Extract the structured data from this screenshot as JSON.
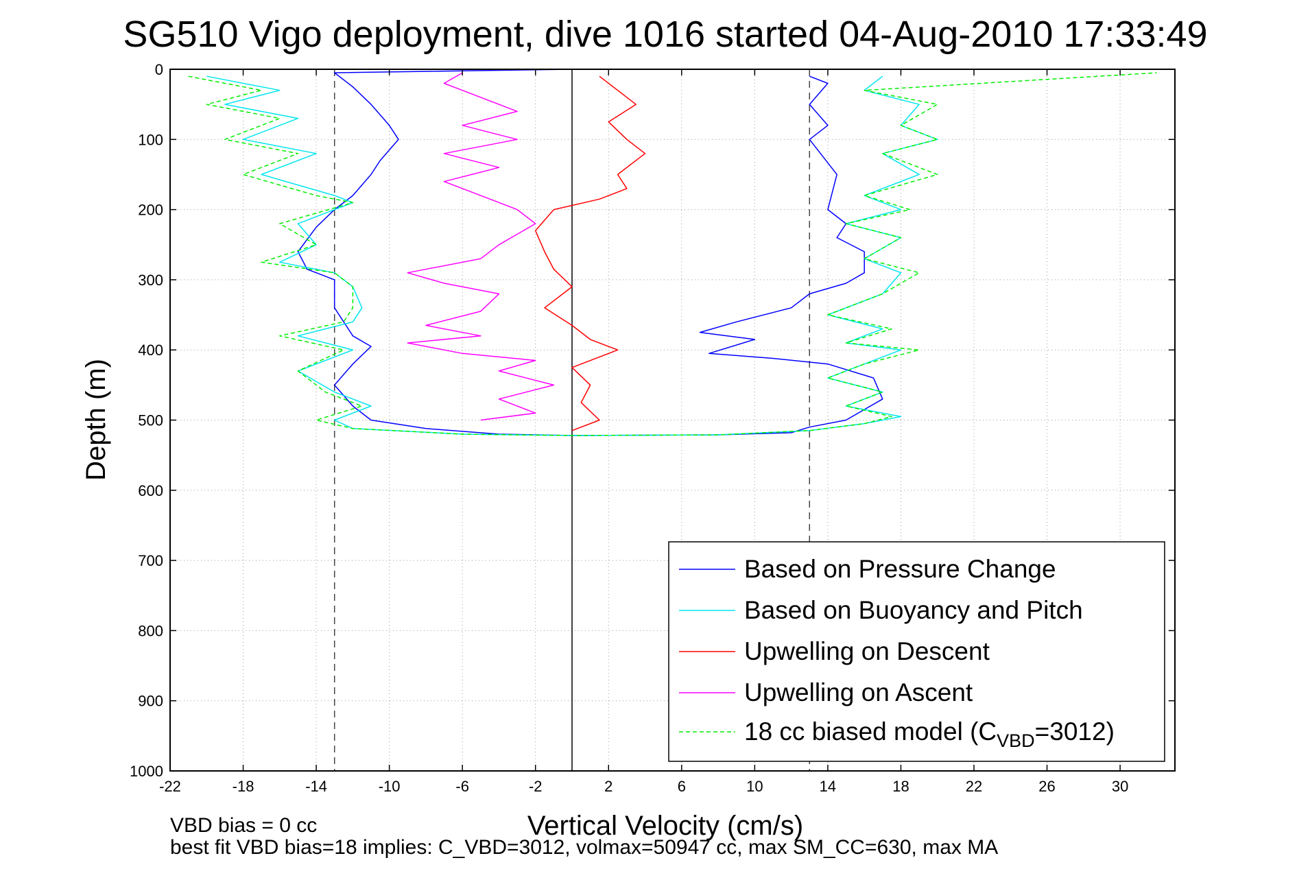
{
  "chart_data": {
    "type": "line",
    "title": "SG510 Vigo deployment, dive 1016 started 04-Aug-2010 17:33:49",
    "xlabel": "Vertical Velocity (cm/s)",
    "ylabel": "Depth (m)",
    "xlim": [
      -22,
      33
    ],
    "ylim": [
      0,
      1000
    ],
    "y_reversed": true,
    "grid": true,
    "x_ticks": [
      -22,
      -18,
      -14,
      -10,
      -6,
      -2,
      2,
      6,
      10,
      14,
      18,
      22,
      26,
      30
    ],
    "x_tick_labels": [
      "-22",
      "-18",
      "-14",
      "-10",
      "-6",
      "-2",
      "2",
      "6",
      "10",
      "14",
      "18",
      "22",
      "26",
      "30"
    ],
    "y_ticks": [
      0,
      100,
      200,
      300,
      400,
      500,
      600,
      700,
      800,
      900,
      1000
    ],
    "y_tick_labels": [
      "0",
      "100",
      "200",
      "300",
      "400",
      "500",
      "600",
      "700",
      "800",
      "900",
      "1000"
    ],
    "legend_position": "bottom-right",
    "reference_lines": [
      {
        "x": 0,
        "style": "solid"
      },
      {
        "x": -13,
        "style": "dashed"
      },
      {
        "x": 13,
        "style": "dashed"
      }
    ],
    "series": [
      {
        "name": "Based on Pressure Change",
        "color": "#0000ff",
        "style": "solid",
        "points": [
          [
            0,
            0
          ],
          [
            -13,
            5
          ],
          [
            -12,
            25
          ],
          [
            -11,
            50
          ],
          [
            -10,
            80
          ],
          [
            -9.5,
            100
          ],
          [
            -10.5,
            130
          ],
          [
            -11,
            150
          ],
          [
            -12,
            180
          ],
          [
            -13,
            200
          ],
          [
            -14,
            225
          ],
          [
            -15,
            260
          ],
          [
            -14.5,
            285
          ],
          [
            -13,
            300
          ],
          [
            -13,
            340
          ],
          [
            -12,
            380
          ],
          [
            -11,
            395
          ],
          [
            -12,
            420
          ],
          [
            -13,
            450
          ],
          [
            -12,
            480
          ],
          [
            -11,
            500
          ],
          [
            -8,
            512
          ],
          [
            -4,
            520
          ],
          [
            0,
            522
          ],
          [
            8,
            521
          ],
          [
            12,
            518
          ],
          [
            13,
            510
          ],
          [
            15,
            500
          ],
          [
            17,
            470
          ],
          [
            16.5,
            440
          ],
          [
            14,
            420
          ],
          [
            11,
            412
          ],
          [
            7.5,
            405
          ],
          [
            10,
            385
          ],
          [
            7,
            375
          ],
          [
            9,
            360
          ],
          [
            12,
            340
          ],
          [
            13,
            320
          ],
          [
            15,
            305
          ],
          [
            16,
            290
          ],
          [
            16,
            260
          ],
          [
            14.5,
            240
          ],
          [
            15,
            220
          ],
          [
            14,
            200
          ],
          [
            14.5,
            150
          ],
          [
            13,
            100
          ],
          [
            14,
            80
          ],
          [
            13,
            50
          ],
          [
            14,
            20
          ],
          [
            13,
            10
          ]
        ]
      },
      {
        "name": "Based on Buoyancy and Pitch",
        "color": "#00e5ee",
        "style": "solid",
        "points": [
          [
            -20,
            10
          ],
          [
            -16,
            30
          ],
          [
            -19,
            50
          ],
          [
            -15,
            70
          ],
          [
            -18,
            100
          ],
          [
            -14,
            120
          ],
          [
            -17,
            150
          ],
          [
            -13,
            180
          ],
          [
            -12,
            190
          ],
          [
            -15,
            220
          ],
          [
            -14,
            250
          ],
          [
            -16,
            275
          ],
          [
            -13,
            290
          ],
          [
            -12,
            310
          ],
          [
            -11.5,
            340
          ],
          [
            -12,
            360
          ],
          [
            -15,
            380
          ],
          [
            -12,
            400
          ],
          [
            -15,
            430
          ],
          [
            -13,
            460
          ],
          [
            -11,
            480
          ],
          [
            -13,
            500
          ],
          [
            -12,
            512
          ],
          [
            -6,
            520
          ],
          [
            0,
            522
          ],
          [
            8,
            521
          ],
          [
            13,
            515
          ],
          [
            16,
            505
          ],
          [
            18,
            495
          ],
          [
            15,
            480
          ],
          [
            17,
            460
          ],
          [
            14,
            440
          ],
          [
            16,
            420
          ],
          [
            18,
            400
          ],
          [
            15,
            390
          ],
          [
            17,
            370
          ],
          [
            14,
            350
          ],
          [
            17,
            320
          ],
          [
            18,
            290
          ],
          [
            16,
            270
          ],
          [
            18,
            240
          ],
          [
            15,
            220
          ],
          [
            18,
            200
          ],
          [
            16,
            180
          ],
          [
            19,
            150
          ],
          [
            17,
            120
          ],
          [
            20,
            100
          ],
          [
            18,
            80
          ],
          [
            19,
            50
          ],
          [
            16,
            30
          ],
          [
            17,
            10
          ]
        ]
      },
      {
        "name": "Upwelling on Descent",
        "color": "#ff0000",
        "style": "solid",
        "points": [
          [
            1.5,
            10
          ],
          [
            2.5,
            30
          ],
          [
            3.5,
            50
          ],
          [
            2,
            75
          ],
          [
            3,
            100
          ],
          [
            4,
            120
          ],
          [
            2.5,
            150
          ],
          [
            3,
            170
          ],
          [
            1.5,
            185
          ],
          [
            -1,
            200
          ],
          [
            -2,
            230
          ],
          [
            -1.5,
            260
          ],
          [
            -1,
            285
          ],
          [
            0,
            310
          ],
          [
            -1.5,
            340
          ],
          [
            0,
            365
          ],
          [
            1,
            385
          ],
          [
            2.5,
            400
          ],
          [
            0,
            425
          ],
          [
            1,
            450
          ],
          [
            0.5,
            475
          ],
          [
            1.5,
            500
          ],
          [
            0,
            515
          ]
        ]
      },
      {
        "name": "Upwelling on Ascent",
        "color": "#ff00ff",
        "style": "solid",
        "points": [
          [
            -5,
            500
          ],
          [
            -2,
            490
          ],
          [
            -4,
            470
          ],
          [
            -1,
            450
          ],
          [
            -4,
            430
          ],
          [
            -2,
            415
          ],
          [
            -6,
            405
          ],
          [
            -9,
            390
          ],
          [
            -5,
            380
          ],
          [
            -8,
            365
          ],
          [
            -5,
            345
          ],
          [
            -4,
            320
          ],
          [
            -7,
            305
          ],
          [
            -9,
            290
          ],
          [
            -5,
            270
          ],
          [
            -4,
            250
          ],
          [
            -2,
            220
          ],
          [
            -3,
            200
          ],
          [
            -5,
            180
          ],
          [
            -7,
            160
          ],
          [
            -4,
            140
          ],
          [
            -7,
            120
          ],
          [
            -3,
            100
          ],
          [
            -6,
            80
          ],
          [
            -3,
            60
          ],
          [
            -5,
            40
          ],
          [
            -7,
            20
          ],
          [
            -6,
            5
          ]
        ]
      },
      {
        "name": "18 cc biased model (C_VBD=3012)",
        "color": "#00ee00",
        "style": "dashed",
        "points": [
          [
            -21,
            10
          ],
          [
            -17,
            30
          ],
          [
            -20,
            50
          ],
          [
            -16,
            70
          ],
          [
            -19,
            100
          ],
          [
            -15,
            120
          ],
          [
            -18,
            150
          ],
          [
            -14,
            180
          ],
          [
            -12,
            190
          ],
          [
            -16,
            220
          ],
          [
            -14,
            250
          ],
          [
            -17,
            275
          ],
          [
            -13,
            290
          ],
          [
            -12,
            310
          ],
          [
            -12,
            340
          ],
          [
            -12.5,
            360
          ],
          [
            -16,
            380
          ],
          [
            -12.5,
            400
          ],
          [
            -15,
            430
          ],
          [
            -13.5,
            460
          ],
          [
            -11.5,
            480
          ],
          [
            -14,
            500
          ],
          [
            -12,
            512
          ],
          [
            -6,
            520
          ],
          [
            0,
            522
          ],
          [
            8,
            521
          ],
          [
            13,
            515
          ],
          [
            16,
            505
          ],
          [
            17.5,
            495
          ],
          [
            15,
            480
          ],
          [
            17,
            460
          ],
          [
            14,
            440
          ],
          [
            16,
            420
          ],
          [
            19,
            400
          ],
          [
            15,
            390
          ],
          [
            17.5,
            370
          ],
          [
            14,
            350
          ],
          [
            17,
            320
          ],
          [
            19,
            290
          ],
          [
            16,
            270
          ],
          [
            18,
            240
          ],
          [
            15,
            220
          ],
          [
            18.5,
            200
          ],
          [
            16,
            180
          ],
          [
            20,
            150
          ],
          [
            17,
            120
          ],
          [
            20,
            100
          ],
          [
            18,
            80
          ],
          [
            20,
            50
          ],
          [
            16,
            30
          ],
          [
            32,
            5
          ]
        ]
      }
    ],
    "legend_entries": [
      {
        "label": "Based on Pressure Change"
      },
      {
        "label": "Based on Buoyancy and Pitch"
      },
      {
        "label": "Upwelling on Descent"
      },
      {
        "label": "Upwelling on Ascent"
      },
      {
        "label": "18 cc biased model (C",
        "sub": "VBD",
        "suffix": "=3012)"
      }
    ],
    "annotations": {
      "vbd_bias": "VBD bias = 0 cc",
      "best_fit": "best fit VBD bias=18 implies: C_VBD=3012, volmax=50947 cc, max SM_CC=630, max MA"
    }
  }
}
